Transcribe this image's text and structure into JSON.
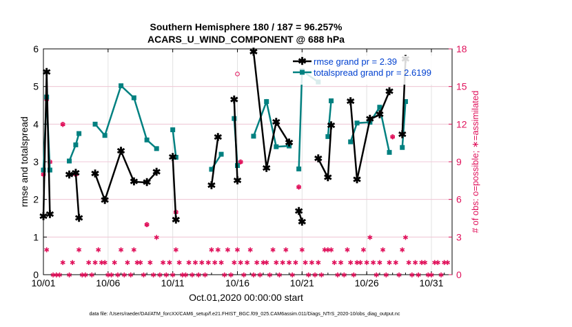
{
  "chart_data": {
    "type": "line",
    "title": "Southern Hemisphere 180 / 187 = 96.257%",
    "subtitle": "ACARS_U_WIND_COMPONENT @ 688 hPa",
    "xlabel": "Oct.01,2020 00:00:00 start",
    "ylabel": "rmse and totalspread",
    "y2label": "# of obs: o=possible; ∗=assimilated",
    "footer": "data file: /Users/raeder/DAI/ATM_forcXX/CAM6_setup/f.e21.FHIST_BGC.f09_025.CAM6assim.011/Diags_NTrS_2020-10/obs_diag_output.nc",
    "xlim": [
      1,
      32.6
    ],
    "ylim": [
      0,
      6
    ],
    "y2lim": [
      0,
      18
    ],
    "grid": true,
    "legend_position": "top-right",
    "x_ticks": [
      1,
      6,
      11,
      16,
      21,
      26,
      31
    ],
    "x_tick_labels": [
      "10/01",
      "10/06",
      "10/11",
      "10/16",
      "10/21",
      "10/26",
      "10/31"
    ],
    "y_ticks": [
      0,
      1,
      2,
      3,
      4,
      5,
      6
    ],
    "y2_ticks": [
      0,
      3,
      6,
      9,
      12,
      15,
      18
    ],
    "colors": {
      "rmse": "#000000",
      "spread": "#008080",
      "obs": "#e0105a",
      "grid": "#e2e2e2"
    },
    "series": [
      {
        "name": "rmse",
        "legend": "rmse grand pr = 2.39",
        "points": [
          [
            1.0,
            1.55
          ],
          [
            1.25,
            5.38
          ],
          [
            1.5,
            1.6
          ],
          null,
          [
            3.0,
            2.65
          ],
          [
            3.5,
            2.7
          ],
          [
            3.75,
            1.5
          ],
          null,
          [
            5.0,
            2.68
          ],
          [
            5.75,
            1.98
          ],
          [
            7.0,
            3.28
          ],
          [
            8.0,
            2.47
          ],
          [
            9.0,
            2.45
          ],
          [
            9.75,
            2.73
          ],
          null,
          [
            11.0,
            3.12
          ],
          [
            11.25,
            1.45
          ],
          null,
          [
            14.0,
            2.37
          ],
          [
            14.5,
            3.65
          ],
          null,
          [
            15.75,
            4.65
          ],
          [
            16.0,
            2.5
          ],
          null,
          [
            17.25,
            5.92
          ],
          [
            18.25,
            2.83
          ],
          [
            19.0,
            4.05
          ],
          [
            20.0,
            3.5
          ],
          null,
          [
            20.75,
            1.68
          ],
          [
            21.0,
            1.4
          ],
          null,
          [
            22.25,
            3.08
          ],
          [
            23.0,
            2.58
          ],
          [
            23.25,
            3.96
          ],
          null,
          [
            24.75,
            4.6
          ],
          [
            25.25,
            2.52
          ],
          [
            26.25,
            4.13
          ],
          [
            27.0,
            4.25
          ],
          [
            27.75,
            4.87
          ],
          null,
          [
            28.75,
            3.72
          ],
          [
            29.0,
            5.73
          ]
        ]
      },
      {
        "name": "totalspread",
        "legend": "totalspread grand pr = 2.6199",
        "points": [
          [
            1.0,
            2.78
          ],
          [
            1.25,
            4.72
          ],
          [
            1.5,
            2.78
          ],
          null,
          [
            3.0,
            3.02
          ],
          [
            3.5,
            3.45
          ],
          [
            3.75,
            3.75
          ],
          null,
          [
            5.0,
            4.0
          ],
          [
            5.75,
            3.7
          ],
          [
            7.0,
            5.02
          ],
          [
            8.0,
            4.7
          ],
          [
            9.0,
            3.58
          ],
          [
            9.75,
            3.35
          ],
          null,
          [
            11.0,
            3.85
          ],
          [
            11.25,
            3.12
          ],
          null,
          [
            14.0,
            2.8
          ],
          [
            14.75,
            3.2
          ],
          null,
          [
            15.75,
            4.15
          ],
          [
            16.0,
            2.9
          ],
          null,
          [
            17.25,
            3.68
          ],
          [
            18.25,
            4.6
          ],
          [
            19.0,
            3.4
          ],
          [
            20.0,
            3.42
          ],
          null,
          [
            20.75,
            2.81
          ],
          [
            21.0,
            5.42
          ],
          [
            22.25,
            5.12
          ],
          null,
          [
            23.0,
            3.67
          ],
          [
            23.25,
            4.62
          ],
          null,
          [
            24.75,
            3.53
          ],
          [
            25.25,
            4.03
          ],
          [
            26.25,
            4.05
          ],
          [
            27.0,
            4.45
          ],
          [
            27.75,
            3.25
          ],
          null,
          [
            28.75,
            3.38
          ],
          [
            29.0,
            4.6
          ]
        ]
      },
      {
        "name": "obs_possible",
        "points": [
          [
            1.0,
            8.0
          ],
          [
            1.25,
            14.0
          ],
          [
            1.5,
            9.0
          ],
          [
            2.5,
            12.0
          ],
          [
            3.5,
            8.0
          ],
          [
            5.75,
            6.0
          ],
          [
            9.0,
            4.0
          ],
          [
            11.25,
            5.0
          ],
          [
            16.0,
            16.0
          ],
          [
            16.25,
            9.0
          ],
          [
            20.75,
            7.0
          ],
          [
            28.0,
            11.0
          ]
        ]
      },
      {
        "name": "obs_assimilated",
        "points": [
          [
            1.0,
            8.0
          ],
          [
            1.25,
            14.0
          ],
          [
            1.25,
            2.0
          ],
          [
            1.5,
            9.0
          ],
          [
            1.75,
            0
          ],
          [
            2.0,
            0
          ],
          [
            2.25,
            0
          ],
          [
            2.5,
            12.0
          ],
          [
            2.5,
            1.0
          ],
          [
            3.0,
            0
          ],
          [
            3.25,
            1.0
          ],
          [
            3.5,
            8.0
          ],
          [
            3.75,
            2.0
          ],
          [
            4.0,
            0
          ],
          [
            4.25,
            0
          ],
          [
            4.5,
            1.0
          ],
          [
            4.75,
            0
          ],
          [
            5.0,
            1.0
          ],
          [
            5.25,
            2.0
          ],
          [
            5.5,
            1.0
          ],
          [
            5.75,
            6.0
          ],
          [
            5.75,
            1.0
          ],
          [
            6.0,
            0
          ],
          [
            6.25,
            0
          ],
          [
            6.5,
            1.0
          ],
          [
            6.75,
            0
          ],
          [
            7.0,
            2.0
          ],
          [
            7.25,
            0
          ],
          [
            7.5,
            1.0
          ],
          [
            7.75,
            0
          ],
          [
            8.0,
            2.0
          ],
          [
            8.25,
            1.0
          ],
          [
            8.5,
            1.0
          ],
          [
            8.75,
            0
          ],
          [
            9.0,
            4.0
          ],
          [
            9.25,
            1.0
          ],
          [
            9.5,
            0
          ],
          [
            9.75,
            3.0
          ],
          [
            10.0,
            0
          ],
          [
            10.25,
            1.0
          ],
          [
            10.5,
            0
          ],
          [
            10.75,
            1.0
          ],
          [
            11.0,
            0
          ],
          [
            11.25,
            5.0
          ],
          [
            11.25,
            2.0
          ],
          [
            11.5,
            1.0
          ],
          [
            11.75,
            0
          ],
          [
            12.0,
            0
          ],
          [
            12.25,
            1.0
          ],
          [
            12.5,
            0
          ],
          [
            12.75,
            1.0
          ],
          [
            13.0,
            0
          ],
          [
            13.25,
            1.0
          ],
          [
            13.5,
            0
          ],
          [
            13.75,
            1.0
          ],
          [
            14.0,
            2.0
          ],
          [
            14.25,
            1.0
          ],
          [
            14.5,
            2.0
          ],
          [
            14.75,
            1.0
          ],
          [
            15.0,
            0
          ],
          [
            15.25,
            2.0
          ],
          [
            15.5,
            0
          ],
          [
            15.75,
            1.0
          ],
          [
            16.0,
            2.0
          ],
          [
            16.25,
            9.0
          ],
          [
            16.25,
            1.0
          ],
          [
            16.5,
            0
          ],
          [
            16.75,
            1.0
          ],
          [
            17.0,
            2.0
          ],
          [
            17.25,
            0
          ],
          [
            17.5,
            1.0
          ],
          [
            17.75,
            0
          ],
          [
            18.0,
            1.0
          ],
          [
            18.25,
            1.0
          ],
          [
            18.5,
            0
          ],
          [
            18.75,
            2.0
          ],
          [
            19.0,
            1.0
          ],
          [
            19.25,
            0
          ],
          [
            19.5,
            1.0
          ],
          [
            19.75,
            2.0
          ],
          [
            20.0,
            1.0
          ],
          [
            20.25,
            0
          ],
          [
            20.5,
            1.0
          ],
          [
            20.75,
            7.0
          ],
          [
            21.0,
            2.0
          ],
          [
            21.25,
            1.0
          ],
          [
            21.5,
            0
          ],
          [
            21.75,
            1.0
          ],
          [
            22.0,
            0
          ],
          [
            22.25,
            1.0
          ],
          [
            22.5,
            0
          ],
          [
            22.75,
            2.0
          ],
          [
            23.0,
            2.0
          ],
          [
            23.25,
            2.0
          ],
          [
            23.5,
            1.0
          ],
          [
            23.75,
            0
          ],
          [
            24.0,
            1.0
          ],
          [
            24.25,
            0
          ],
          [
            24.5,
            2.0
          ],
          [
            24.75,
            1.0
          ],
          [
            25.0,
            0
          ],
          [
            25.25,
            1.0
          ],
          [
            25.5,
            1.0
          ],
          [
            25.75,
            2.0
          ],
          [
            26.0,
            1.0
          ],
          [
            26.25,
            3.0
          ],
          [
            26.5,
            1.0
          ],
          [
            26.75,
            0
          ],
          [
            27.0,
            1.0
          ],
          [
            27.25,
            2.0
          ],
          [
            27.5,
            0
          ],
          [
            27.75,
            1.0
          ],
          [
            28.0,
            11.0
          ],
          [
            28.25,
            1.0
          ],
          [
            28.5,
            0
          ],
          [
            28.75,
            2.0
          ],
          [
            29.0,
            3.0
          ],
          [
            29.25,
            1.0
          ],
          [
            29.5,
            0
          ],
          [
            29.75,
            1.0
          ],
          [
            30.0,
            0
          ],
          [
            30.25,
            1.0
          ],
          [
            30.5,
            1.0
          ],
          [
            30.75,
            0
          ],
          [
            31.0,
            0
          ],
          [
            31.25,
            1.0
          ],
          [
            31.5,
            1.0
          ],
          [
            31.75,
            0
          ],
          [
            32.0,
            1.0
          ],
          [
            32.25,
            1.0
          ]
        ]
      }
    ]
  }
}
